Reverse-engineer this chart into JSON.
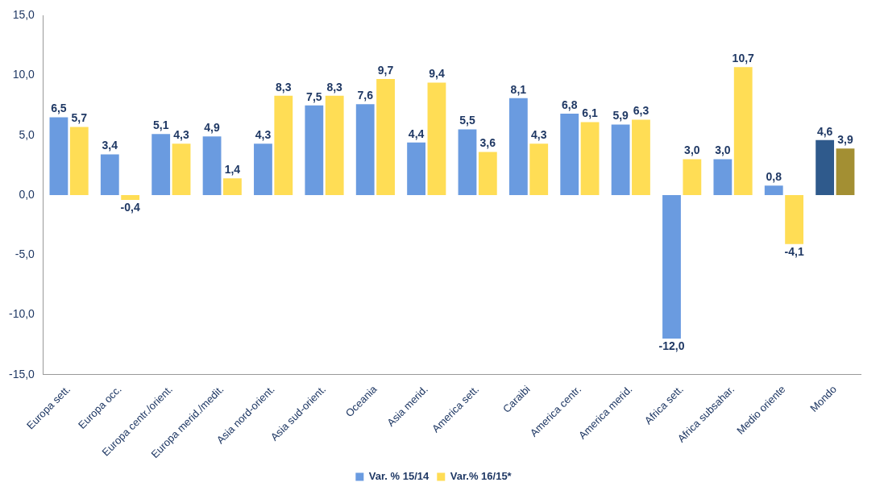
{
  "chart_data": {
    "type": "bar",
    "categories": [
      "Europa sett.",
      "Europa occ.",
      "Europa centr./orient.",
      "Europa merid./medit.",
      "Asia nord-orient.",
      "Asia sud-orient.",
      "Oceania",
      "Asia merid.",
      "America sett.",
      "Caraibi",
      "America centr.",
      "America merid.",
      "Africa sett.",
      "Africa subsahar.",
      "Medio oriente",
      "Mondo"
    ],
    "series": [
      {
        "name": "Var. % 15/14",
        "color": "#6a9be0",
        "colors": [
          "#6a9be0",
          "#6a9be0",
          "#6a9be0",
          "#6a9be0",
          "#6a9be0",
          "#6a9be0",
          "#6a9be0",
          "#6a9be0",
          "#6a9be0",
          "#6a9be0",
          "#6a9be0",
          "#6a9be0",
          "#6a9be0",
          "#6a9be0",
          "#6a9be0",
          "#2f5a8c"
        ],
        "values": [
          6.5,
          3.4,
          5.1,
          4.9,
          4.3,
          7.5,
          7.6,
          4.4,
          5.5,
          8.1,
          6.8,
          5.9,
          -12.0,
          3.0,
          0.8,
          4.6
        ],
        "value_labels": [
          "6,5",
          "3,4",
          "5,1",
          "4,9",
          "4,3",
          "7,5",
          "7,6",
          "4,4",
          "5,5",
          "8,1",
          "6,8",
          "5,9",
          "-12,0",
          "3,0",
          "0,8",
          "4,6"
        ]
      },
      {
        "name": "Var.% 16/15*",
        "color": "#ffdd55",
        "colors": [
          "#ffdd55",
          "#ffdd55",
          "#ffdd55",
          "#ffdd55",
          "#ffdd55",
          "#ffdd55",
          "#ffdd55",
          "#ffdd55",
          "#ffdd55",
          "#ffdd55",
          "#ffdd55",
          "#ffdd55",
          "#ffdd55",
          "#ffdd55",
          "#ffdd55",
          "#a38f33"
        ],
        "values": [
          5.7,
          -0.4,
          4.3,
          1.4,
          8.3,
          8.3,
          9.7,
          9.4,
          3.6,
          4.3,
          6.1,
          6.3,
          3.0,
          10.7,
          -4.1,
          3.9
        ],
        "value_labels": [
          "5,7",
          "-0,4",
          "4,3",
          "1,4",
          "8,3",
          "8,3",
          "9,7",
          "9,4",
          "3,6",
          "4,3",
          "6,1",
          "6,3",
          "3,0",
          "10,7",
          "-4,1",
          "3,9"
        ]
      }
    ],
    "ylim": [
      -15,
      15
    ],
    "yticks": [
      {
        "value": -15,
        "label": "-15,0"
      },
      {
        "value": -10,
        "label": "-10,0"
      },
      {
        "value": -5,
        "label": "-5,0"
      },
      {
        "value": 0,
        "label": "0,0"
      },
      {
        "value": 5,
        "label": "5,0"
      },
      {
        "value": 10,
        "label": "10,0"
      },
      {
        "value": 15,
        "label": "15,0"
      }
    ],
    "grid": false,
    "legend": "bottom"
  }
}
